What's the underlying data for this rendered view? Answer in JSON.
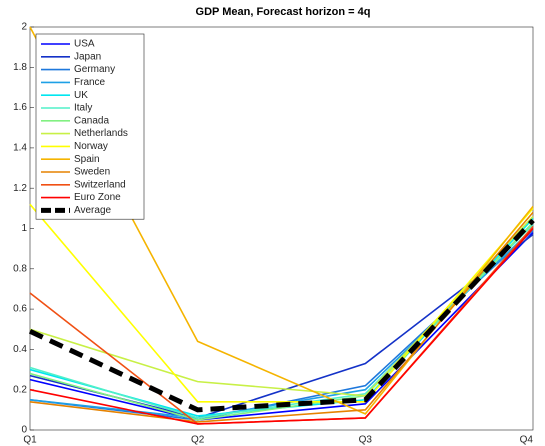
{
  "chart_data": {
    "type": "line",
    "title": "GDP Mean, Forecast horizon = 4q",
    "categories": [
      "Q1",
      "Q2",
      "Q3",
      "Q4"
    ],
    "ylim": [
      0,
      2
    ],
    "yticks": [
      0,
      0.2,
      0.4,
      0.6,
      0.8,
      1,
      1.2,
      1.4,
      1.6,
      1.8,
      2
    ],
    "legend": "northwest",
    "series": [
      {
        "name": "USA",
        "color": "#0000ff",
        "values": [
          0.25,
          0.05,
          0.13,
          0.98
        ]
      },
      {
        "name": "Japan",
        "color": "#1432c8",
        "values": [
          0.27,
          0.06,
          0.33,
          0.97
        ]
      },
      {
        "name": "Germany",
        "color": "#1e78dc",
        "values": [
          0.15,
          0.05,
          0.22,
          0.99
        ]
      },
      {
        "name": "France",
        "color": "#1ea0e6",
        "values": [
          0.15,
          0.06,
          0.2,
          1.0
        ]
      },
      {
        "name": "UK",
        "color": "#00e6f0",
        "values": [
          0.3,
          0.07,
          0.15,
          1.05
        ]
      },
      {
        "name": "Italy",
        "color": "#50f0c8",
        "values": [
          0.31,
          0.06,
          0.18,
          1.02
        ]
      },
      {
        "name": "Canada",
        "color": "#82f082",
        "values": [
          0.28,
          0.05,
          0.17,
          1.03
        ]
      },
      {
        "name": "Netherlands",
        "color": "#c8f046",
        "values": [
          0.5,
          0.24,
          0.17,
          1.06
        ]
      },
      {
        "name": "Norway",
        "color": "#ffff00",
        "values": [
          1.12,
          0.14,
          0.14,
          1.1
        ]
      },
      {
        "name": "Spain",
        "color": "#f5b400",
        "values": [
          2.0,
          0.44,
          0.08,
          1.11
        ]
      },
      {
        "name": "Sweden",
        "color": "#e68200",
        "values": [
          0.14,
          0.04,
          0.1,
          1.08
        ]
      },
      {
        "name": "Switzerland",
        "color": "#f05014",
        "values": [
          0.68,
          0.03,
          0.06,
          1.01
        ]
      },
      {
        "name": "Euro Zone",
        "color": "#ff0000",
        "values": [
          0.2,
          0.03,
          0.06,
          1.0
        ]
      },
      {
        "name": "Average",
        "color": "#000000",
        "dashed": true,
        "values": [
          0.49,
          0.1,
          0.15,
          1.04
        ]
      }
    ]
  }
}
